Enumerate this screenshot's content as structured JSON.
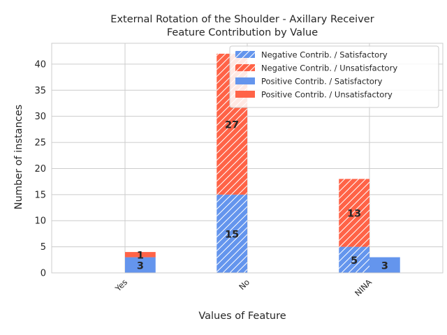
{
  "chart_data": {
    "type": "bar",
    "title_line1": "External Rotation of the Shoulder - Axillary Receiver",
    "title_line2": "Feature Contribution by Value",
    "xlabel": "Values of Feature",
    "ylabel": "Number of instances",
    "categories": [
      "Yes",
      "No",
      "NINA"
    ],
    "ylim": [
      0,
      44
    ],
    "yticks": [
      0,
      5,
      10,
      15,
      20,
      25,
      30,
      35,
      40
    ],
    "grid": true,
    "legend_position": "top-right",
    "series": [
      {
        "name": "Negative Contrib. / Satisfactory",
        "group": "negative",
        "stack": "bottom",
        "hatch": true,
        "color": "#6495ED",
        "values": [
          0,
          15,
          5
        ]
      },
      {
        "name": "Negative Contrib. / Unsatisfactory",
        "group": "negative",
        "stack": "top",
        "hatch": true,
        "color": "#FF6347",
        "values": [
          0,
          27,
          13
        ]
      },
      {
        "name": "Positive Contrib. / Satisfactory",
        "group": "positive",
        "stack": "bottom",
        "hatch": false,
        "color": "#6495ED",
        "values": [
          3,
          0,
          3
        ]
      },
      {
        "name": "Positive Contrib. / Unsatisfactory",
        "group": "positive",
        "stack": "top",
        "hatch": false,
        "color": "#FF6347",
        "values": [
          1,
          0,
          0
        ]
      }
    ]
  }
}
